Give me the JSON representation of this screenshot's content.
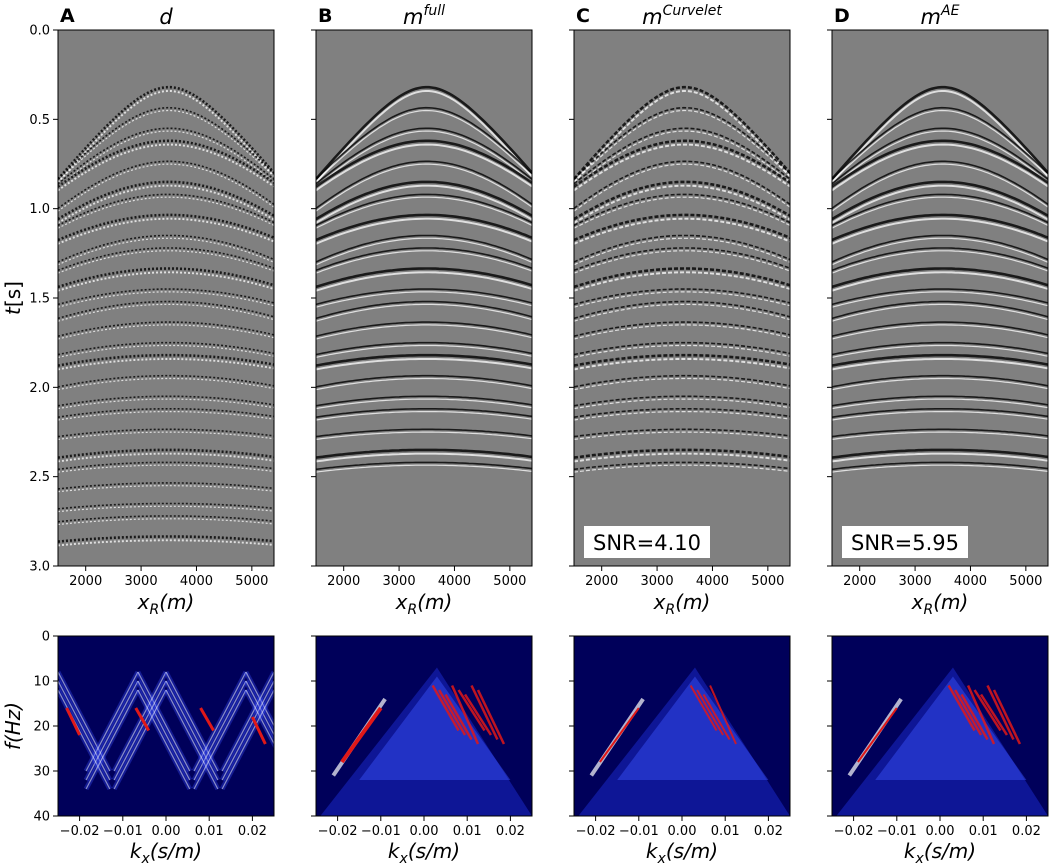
{
  "chart_data": [
    {
      "type": "heatmap",
      "panel_label": "A",
      "title": "d",
      "title_sup": "",
      "xlabel": "x_R(m)",
      "ylabel": "t[s]",
      "xlim": [
        1500,
        5400
      ],
      "ylim": [
        3.0,
        0.0
      ],
      "xticks": [
        2000,
        3000,
        4000,
        5000
      ],
      "yticks": [
        0.0,
        0.5,
        1.0,
        1.5,
        2.0,
        2.5,
        3.0
      ],
      "apex": {
        "x": 3500,
        "t": 0.32
      },
      "annotation": ""
    },
    {
      "type": "heatmap",
      "panel_label": "B",
      "title": "m",
      "title_sup": "full",
      "xlabel": "x_R(m)",
      "ylabel": "",
      "xlim": [
        1500,
        5400
      ],
      "ylim": [
        3.0,
        0.0
      ],
      "xticks": [
        2000,
        3000,
        4000,
        5000
      ],
      "yticks": [
        0.0,
        0.5,
        1.0,
        1.5,
        2.0,
        2.5,
        3.0
      ],
      "apex": {
        "x": 3500,
        "t": 0.32
      },
      "annotation": ""
    },
    {
      "type": "heatmap",
      "panel_label": "C",
      "title": "m",
      "title_sup": "Curvelet",
      "xlabel": "x_R(m)",
      "ylabel": "",
      "xlim": [
        1500,
        5400
      ],
      "ylim": [
        3.0,
        0.0
      ],
      "xticks": [
        2000,
        3000,
        4000,
        5000
      ],
      "yticks": [
        0.0,
        0.5,
        1.0,
        1.5,
        2.0,
        2.5,
        3.0
      ],
      "apex": {
        "x": 3500,
        "t": 0.32
      },
      "annotation": "SNR=4.10"
    },
    {
      "type": "heatmap",
      "panel_label": "D",
      "title": "m",
      "title_sup": "AE",
      "xlabel": "x_R(m)",
      "ylabel": "",
      "xlim": [
        1500,
        5400
      ],
      "ylim": [
        3.0,
        0.0
      ],
      "xticks": [
        2000,
        3000,
        4000,
        5000
      ],
      "yticks": [
        0.0,
        0.5,
        1.0,
        1.5,
        2.0,
        2.5,
        3.0
      ],
      "apex": {
        "x": 3500,
        "t": 0.32
      },
      "annotation": "SNR=5.95"
    },
    {
      "type": "heatmap",
      "xlabel": "k_x(s/m)",
      "ylabel": "f(Hz)",
      "xlim": [
        -0.025,
        0.025
      ],
      "ylim": [
        40,
        0
      ],
      "xticks": [
        -0.02,
        -0.01,
        0.0,
        0.01,
        0.02
      ],
      "yticks": [
        0,
        10,
        20,
        30,
        40
      ],
      "colormap": "seismic (dark blue to red)"
    },
    {
      "type": "heatmap",
      "xlabel": "k_x(s/m)",
      "ylabel": "",
      "xlim": [
        -0.025,
        0.025
      ],
      "ylim": [
        40,
        0
      ],
      "xticks": [
        -0.02,
        -0.01,
        0.0,
        0.01,
        0.02
      ],
      "yticks": [
        0,
        10,
        20,
        30,
        40
      ],
      "colormap": "seismic (dark blue to red)"
    },
    {
      "type": "heatmap",
      "xlabel": "k_x(s/m)",
      "ylabel": "",
      "xlim": [
        -0.025,
        0.025
      ],
      "ylim": [
        40,
        0
      ],
      "xticks": [
        -0.02,
        -0.01,
        0.0,
        0.01,
        0.02
      ],
      "yticks": [
        0,
        10,
        20,
        30,
        40
      ],
      "colormap": "seismic (dark blue to red)"
    },
    {
      "type": "heatmap",
      "xlabel": "k_x(s/m)",
      "ylabel": "",
      "xlim": [
        -0.025,
        0.025
      ],
      "ylim": [
        40,
        0
      ],
      "xticks": [
        -0.02,
        -0.01,
        0.0,
        0.01,
        0.02
      ],
      "yticks": [
        0,
        10,
        20,
        30,
        40
      ],
      "colormap": "seismic (dark blue to red)"
    }
  ],
  "tick_text": {
    "top_x": [
      "2000",
      "3000",
      "4000",
      "5000"
    ],
    "top_y": [
      "0.0",
      "0.5",
      "1.0",
      "1.5",
      "2.0",
      "2.5",
      "3.0"
    ],
    "bottom_x": [
      "−0.02",
      "−0.01",
      "0.00",
      "0.01",
      "0.02"
    ],
    "bottom_y": [
      "0",
      "10",
      "20",
      "30",
      "40"
    ]
  },
  "colors": {
    "seismic_background": "#808080",
    "spectrum_background": "#00005a",
    "spectrum_hot": "#e01818",
    "annotation_box": "#ffffff"
  }
}
